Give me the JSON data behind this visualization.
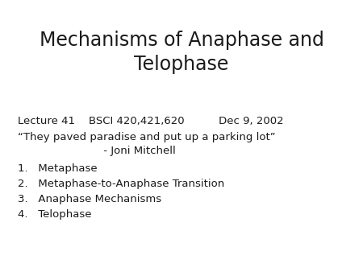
{
  "title_line1": "Mechanisms of Anaphase and",
  "title_line2": "Telophase",
  "subtitle": "Lecture 41    BSCI 420,421,620          Dec 9, 2002",
  "quote_line1": "“They paved paradise and put up a parking lot”",
  "quote_line2": "                         - Joni Mitchell",
  "items": [
    "1.   Metaphase",
    "2.   Metaphase-to-Anaphase Transition",
    "3.   Anaphase Mechanisms",
    "4.   Telophase"
  ],
  "bg_color": "#ffffff",
  "text_color": "#1a1a1a",
  "title_fontsize": 17,
  "subtitle_fontsize": 9.5,
  "quote_fontsize": 9.5,
  "item_fontsize": 9.5
}
